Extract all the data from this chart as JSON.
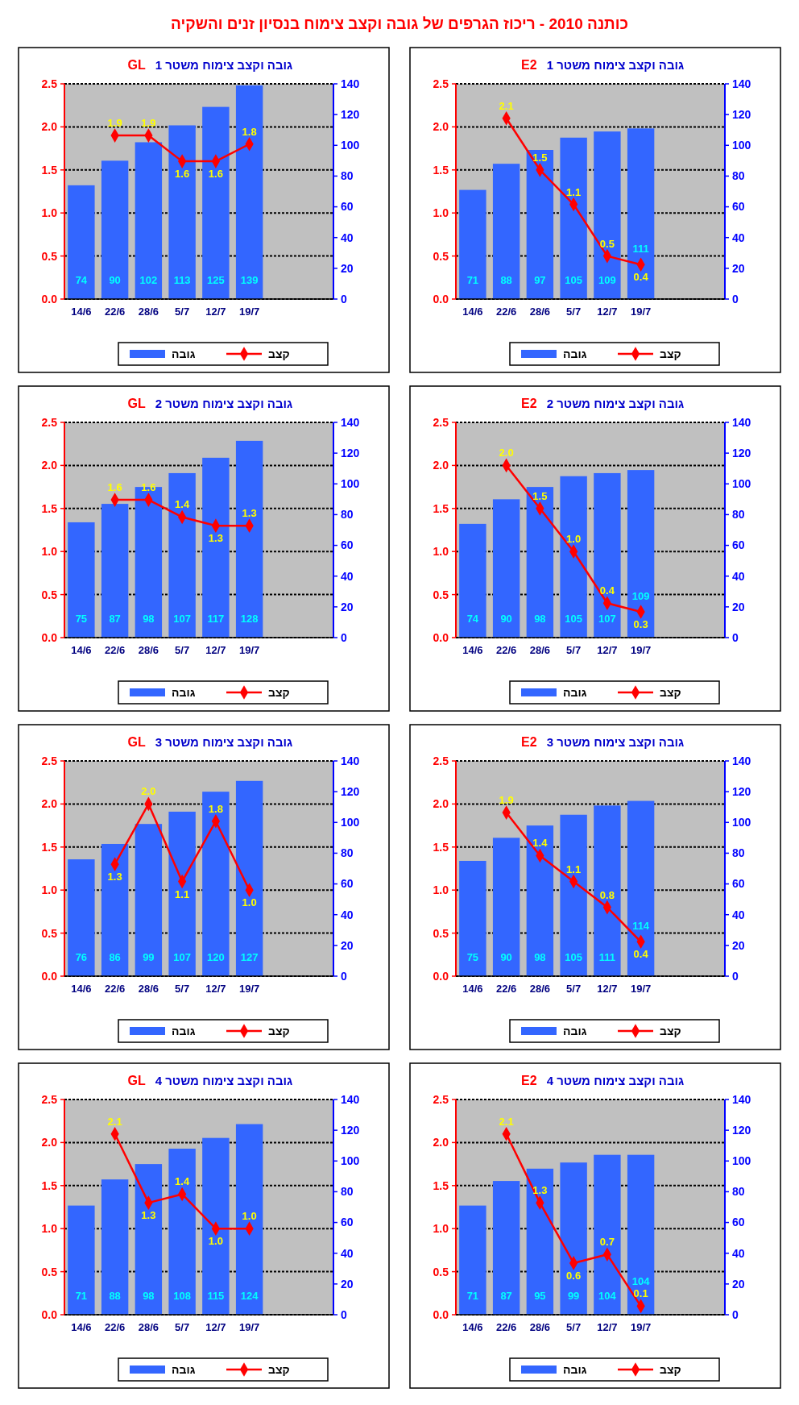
{
  "chart_data": [
    {
      "type": "other",
      "title": "כותנה 2010 - ריכוז הגרפים של גובה וקצב צימוח בנסיון זנים והשקיה"
    },
    {
      "type": "bar",
      "title": "גובה וקצב צימוח משטר 1",
      "subtitle": "GL",
      "categories": [
        "14/6",
        "22/6",
        "28/6",
        "5/7",
        "12/7",
        "19/7",
        null,
        null
      ],
      "ylim": [
        0,
        2.5
      ],
      "yticks": [
        {
          "value": 0,
          "label": "0.0"
        },
        0.5,
        {
          "value": 1,
          "label": "1.0"
        },
        1.5,
        {
          "value": 2,
          "label": "2.0"
        },
        2.5
      ],
      "y2lim": [
        0,
        140
      ],
      "y2ticks": [
        0,
        20,
        40,
        60,
        80,
        100,
        120,
        140
      ],
      "grid": "y",
      "legend": "bottom",
      "marker": "diamond",
      "series": [
        {
          "name": "גובה",
          "type": "bar",
          "axis": "y2",
          "color": "#3366ff",
          "values": [
            74,
            90,
            102,
            113,
            125,
            139,
            null,
            null
          ],
          "value_labels": [
            "74",
            "90",
            "102",
            "113",
            "125",
            "139",
            null,
            null
          ]
        },
        {
          "name": "קצב",
          "type": "line",
          "color": "#ff0000",
          "values": [
            null,
            1.9,
            1.9,
            1.6,
            1.6,
            1.8,
            null,
            null
          ],
          "value_labels": [
            null,
            "1.9",
            "1.9",
            "1.6",
            "1.6",
            "1.8",
            null,
            null
          ]
        }
      ]
    },
    {
      "type": "bar",
      "title": "גובה וקצב צימוח משטר 1",
      "subtitle": "E2",
      "categories": [
        "14/6",
        "22/6",
        "28/6",
        "5/7",
        "12/7",
        "19/7",
        null,
        null
      ],
      "ylim": [
        0,
        2.5
      ],
      "yticks": [
        {
          "value": 0,
          "label": "0.0"
        },
        0.5,
        {
          "value": 1,
          "label": "1.0"
        },
        1.5,
        {
          "value": 2,
          "label": "2.0"
        },
        2.5
      ],
      "y2lim": [
        0,
        140
      ],
      "y2ticks": [
        0,
        20,
        40,
        60,
        80,
        100,
        120,
        140
      ],
      "grid": "y",
      "legend": "bottom",
      "marker": "diamond",
      "series": [
        {
          "name": "גובה",
          "type": "bar",
          "axis": "y2",
          "color": "#3366ff",
          "values": [
            71,
            88,
            97,
            105,
            109,
            111,
            null,
            null
          ],
          "value_labels": [
            "71",
            "88",
            "97",
            "105",
            "109",
            "111",
            null,
            null
          ]
        },
        {
          "name": "קצב",
          "type": "line",
          "color": "#ff0000",
          "values": [
            null,
            2.1,
            1.5,
            1.1,
            0.5,
            0.4,
            null,
            null
          ],
          "value_labels": [
            null,
            "2.1",
            "1.5",
            "1.1",
            "0.5",
            "0.4",
            null,
            null
          ]
        }
      ]
    },
    {
      "type": "bar",
      "title": "גובה וקצב צימוח משטר 2",
      "subtitle": "GL",
      "categories": [
        "14/6",
        "22/6",
        "28/6",
        "5/7",
        "12/7",
        "19/7",
        null,
        null
      ],
      "ylim": [
        0,
        2.5
      ],
      "yticks": [
        {
          "value": 0,
          "label": "0.0"
        },
        0.5,
        {
          "value": 1,
          "label": "1.0"
        },
        1.5,
        {
          "value": 2,
          "label": "2.0"
        },
        2.5
      ],
      "y2lim": [
        0,
        140
      ],
      "y2ticks": [
        0,
        20,
        40,
        60,
        80,
        100,
        120,
        140
      ],
      "grid": "y",
      "legend": "bottom",
      "marker": "diamond",
      "series": [
        {
          "name": "גובה",
          "type": "bar",
          "axis": "y2",
          "color": "#3366ff",
          "values": [
            75,
            87,
            98,
            107,
            117,
            128,
            null,
            null
          ],
          "value_labels": [
            "75",
            "87",
            "98",
            "107",
            "117",
            "128",
            null,
            null
          ]
        },
        {
          "name": "קצב",
          "type": "line",
          "color": "#ff0000",
          "values": [
            null,
            1.6,
            1.6,
            1.4,
            1.3,
            1.3,
            null,
            null
          ],
          "value_labels": [
            null,
            "1.6",
            "1.6",
            "1.4",
            "1.3",
            "1.3",
            null,
            null
          ]
        }
      ]
    },
    {
      "type": "bar",
      "title": "גובה וקצב צימוח משטר 2",
      "subtitle": "E2",
      "categories": [
        "14/6",
        "22/6",
        "28/6",
        "5/7",
        "12/7",
        "19/7",
        null,
        null
      ],
      "ylim": [
        0,
        2.5
      ],
      "yticks": [
        {
          "value": 0,
          "label": "0.0"
        },
        0.5,
        {
          "value": 1,
          "label": "1.0"
        },
        1.5,
        {
          "value": 2,
          "label": "2.0"
        },
        2.5
      ],
      "y2lim": [
        0,
        140
      ],
      "y2ticks": [
        0,
        20,
        40,
        60,
        80,
        100,
        120,
        140
      ],
      "grid": "y",
      "legend": "bottom",
      "marker": "diamond",
      "series": [
        {
          "name": "גובה",
          "type": "bar",
          "axis": "y2",
          "color": "#3366ff",
          "values": [
            74,
            90,
            98,
            105,
            107,
            109,
            null,
            null
          ],
          "value_labels": [
            "74",
            "90",
            "98",
            "105",
            "107",
            "109",
            null,
            null
          ]
        },
        {
          "name": "קצב",
          "type": "line",
          "color": "#ff0000",
          "values": [
            null,
            2.0,
            1.5,
            1.0,
            0.4,
            0.3,
            null,
            null
          ],
          "value_labels": [
            null,
            "2.0",
            "1.5",
            "1.0",
            "0.4",
            "0.3",
            null,
            null
          ]
        }
      ]
    },
    {
      "type": "bar",
      "title": "גובה וקצב צימוח משטר 3",
      "subtitle": "GL",
      "categories": [
        "14/6",
        "22/6",
        "28/6",
        "5/7",
        "12/7",
        "19/7",
        null,
        null
      ],
      "ylim": [
        0,
        2.5
      ],
      "yticks": [
        {
          "value": 0,
          "label": "0.0"
        },
        0.5,
        {
          "value": 1,
          "label": "1.0"
        },
        1.5,
        {
          "value": 2,
          "label": "2.0"
        },
        2.5
      ],
      "y2lim": [
        0,
        140
      ],
      "y2ticks": [
        0,
        20,
        40,
        60,
        80,
        100,
        120,
        140
      ],
      "grid": "y",
      "legend": "bottom",
      "marker": "diamond",
      "series": [
        {
          "name": "גובה",
          "type": "bar",
          "axis": "y2",
          "color": "#3366ff",
          "values": [
            76,
            86,
            99,
            107,
            120,
            127,
            null,
            null
          ],
          "value_labels": [
            "76",
            "86",
            "99",
            "107",
            "120",
            "127",
            null,
            null
          ]
        },
        {
          "name": "קצב",
          "type": "line",
          "color": "#ff0000",
          "values": [
            null,
            1.3,
            2.0,
            1.1,
            1.8,
            1.0,
            null,
            null
          ],
          "value_labels": [
            null,
            "1.3",
            "2.0",
            "1.1",
            "1.8",
            "1.0",
            null,
            null
          ]
        }
      ]
    },
    {
      "type": "bar",
      "title": "גובה וקצב צימוח משטר 3",
      "subtitle": "E2",
      "categories": [
        "14/6",
        "22/6",
        "28/6",
        "5/7",
        "12/7",
        "19/7",
        null,
        null
      ],
      "ylim": [
        0,
        2.5
      ],
      "yticks": [
        {
          "value": 0,
          "label": "0.0"
        },
        0.5,
        {
          "value": 1,
          "label": "1.0"
        },
        1.5,
        {
          "value": 2,
          "label": "2.0"
        },
        2.5
      ],
      "y2lim": [
        0,
        140
      ],
      "y2ticks": [
        0,
        20,
        40,
        60,
        80,
        100,
        120,
        140
      ],
      "grid": "y",
      "legend": "bottom",
      "marker": "diamond",
      "series": [
        {
          "name": "גובה",
          "type": "bar",
          "axis": "y2",
          "color": "#3366ff",
          "values": [
            75,
            90,
            98,
            105,
            111,
            114,
            null,
            null
          ],
          "value_labels": [
            "75",
            "90",
            "98",
            "105",
            "111",
            "114",
            null,
            null
          ]
        },
        {
          "name": "קצב",
          "type": "line",
          "color": "#ff0000",
          "values": [
            null,
            1.9,
            1.4,
            1.1,
            0.8,
            0.4,
            null,
            null
          ],
          "value_labels": [
            null,
            "1.9",
            "1.4",
            "1.1",
            "0.8",
            "0.4",
            null,
            null
          ]
        }
      ]
    },
    {
      "type": "bar",
      "title": "גובה וקצב צימוח משטר 4",
      "subtitle": "GL",
      "categories": [
        "14/6",
        "22/6",
        "28/6",
        "5/7",
        "12/7",
        "19/7",
        null,
        null
      ],
      "ylim": [
        0,
        2.5
      ],
      "yticks": [
        {
          "value": 0,
          "label": "0.0"
        },
        0.5,
        {
          "value": 1,
          "label": "1.0"
        },
        1.5,
        {
          "value": 2,
          "label": "2.0"
        },
        2.5
      ],
      "y2lim": [
        0,
        140
      ],
      "y2ticks": [
        0,
        20,
        40,
        60,
        80,
        100,
        120,
        140
      ],
      "grid": "y",
      "legend": "bottom",
      "marker": "diamond",
      "series": [
        {
          "name": "גובה",
          "type": "bar",
          "axis": "y2",
          "color": "#3366ff",
          "values": [
            71,
            88,
            98,
            108,
            115,
            124,
            null,
            null
          ],
          "value_labels": [
            "71",
            "88",
            "98",
            "108",
            "115",
            "124",
            null,
            null
          ]
        },
        {
          "name": "קצב",
          "type": "line",
          "color": "#ff0000",
          "values": [
            null,
            2.1,
            1.3,
            1.4,
            1.0,
            1.0,
            null,
            null
          ],
          "value_labels": [
            null,
            "2.1",
            "1.3",
            "1.4",
            "1.0",
            "1.0",
            null,
            null
          ]
        }
      ]
    },
    {
      "type": "bar",
      "title": "גובה וקצב צימוח משטר 4",
      "subtitle": "E2",
      "categories": [
        "14/6",
        "22/6",
        "28/6",
        "5/7",
        "12/7",
        "19/7",
        null,
        null
      ],
      "ylim": [
        0,
        2.5
      ],
      "yticks": [
        {
          "value": 0,
          "label": "0.0"
        },
        0.5,
        {
          "value": 1,
          "label": "1.0"
        },
        1.5,
        {
          "value": 2,
          "label": "2.0"
        },
        2.5
      ],
      "y2lim": [
        0,
        140
      ],
      "y2ticks": [
        0,
        20,
        40,
        60,
        80,
        100,
        120,
        140
      ],
      "grid": "y",
      "legend": "bottom",
      "marker": "diamond",
      "series": [
        {
          "name": "גובה",
          "type": "bar",
          "axis": "y2",
          "color": "#3366ff",
          "values": [
            71,
            87,
            95,
            99,
            104,
            104,
            null,
            null
          ],
          "value_labels": [
            "71",
            "87",
            "95",
            "99",
            "104",
            "104",
            null,
            null
          ]
        },
        {
          "name": "קצב",
          "type": "line",
          "color": "#ff0000",
          "values": [
            null,
            2.1,
            1.3,
            0.6,
            0.7,
            0.1,
            null,
            null
          ],
          "value_labels": [
            null,
            "2.1",
            "1.3",
            "0.6",
            "0.7",
            "0.1",
            null,
            null
          ]
        }
      ]
    }
  ]
}
